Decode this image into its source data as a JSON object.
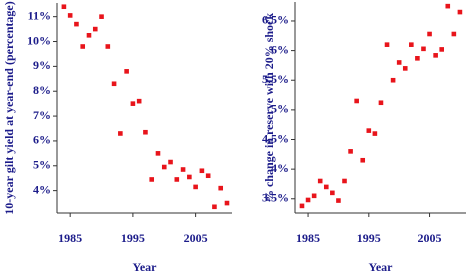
{
  "chart_data": [
    {
      "type": "scatter",
      "x_label": "Year",
      "y_label": "10-year gilt yield at year-end (percentage)",
      "color": "#e8141b",
      "x": [
        1984,
        1985,
        1986,
        1987,
        1988,
        1989,
        1990,
        1991,
        1992,
        1993,
        1994,
        1995,
        1996,
        1997,
        1998,
        1999,
        2000,
        2001,
        2002,
        2003,
        2004,
        2005,
        2006,
        2007,
        2008,
        2009,
        2010
      ],
      "values": [
        11.4,
        11.05,
        10.7,
        9.8,
        10.25,
        10.5,
        11.0,
        9.8,
        8.3,
        6.3,
        8.8,
        7.5,
        7.6,
        6.35,
        4.45,
        5.5,
        4.95,
        5.15,
        4.45,
        4.85,
        4.55,
        4.15,
        4.8,
        4.6,
        3.35,
        4.1,
        3.5
      ],
      "xlim": [
        1982.9,
        2010.8
      ],
      "xticks": [
        1985,
        1995,
        2005
      ],
      "ylim": [
        3.1,
        11.55
      ],
      "yticks": [
        {
          "value": 4,
          "label": "4%"
        },
        {
          "value": 5,
          "label": "5%"
        },
        {
          "value": 6,
          "label": "6%"
        },
        {
          "value": 7,
          "label": "7%"
        },
        {
          "value": 8,
          "label": "8%"
        },
        {
          "value": 9,
          "label": "9%"
        },
        {
          "value": 10,
          "label": "10%"
        },
        {
          "value": 11,
          "label": "11%"
        }
      ]
    },
    {
      "type": "scatter",
      "x_label": "Year",
      "y_label": "% change in reserve with 20% shock",
      "color": "#e8141b",
      "x": [
        1984,
        1985,
        1986,
        1987,
        1988,
        1989,
        1990,
        1991,
        1992,
        1993,
        1994,
        1995,
        1996,
        1997,
        1998,
        1999,
        2000,
        2001,
        2002,
        2003,
        2004,
        2005,
        2006,
        2007,
        2008,
        2009,
        2010
      ],
      "values": [
        3.38,
        3.48,
        3.55,
        3.8,
        3.7,
        3.6,
        3.47,
        3.8,
        4.3,
        5.15,
        4.15,
        4.65,
        4.6,
        5.12,
        6.1,
        5.5,
        5.8,
        5.7,
        6.1,
        5.87,
        6.03,
        6.28,
        5.92,
        6.02,
        6.75,
        6.28,
        6.65
      ],
      "xlim": [
        1982.85,
        2011
      ],
      "xticks": [
        1985,
        1995,
        2005
      ],
      "ylim": [
        3.26,
        6.82
      ],
      "yticks": [
        {
          "value": 3.5,
          "label": "3.5%"
        },
        {
          "value": 4,
          "label": "4%"
        },
        {
          "value": 4.5,
          "label": "4.5%"
        },
        {
          "value": 5,
          "label": "5%"
        },
        {
          "value": 5.5,
          "label": "5.5%"
        },
        {
          "value": 6,
          "label": "6%"
        },
        {
          "value": 6.5,
          "label": "6.5%"
        }
      ]
    }
  ]
}
